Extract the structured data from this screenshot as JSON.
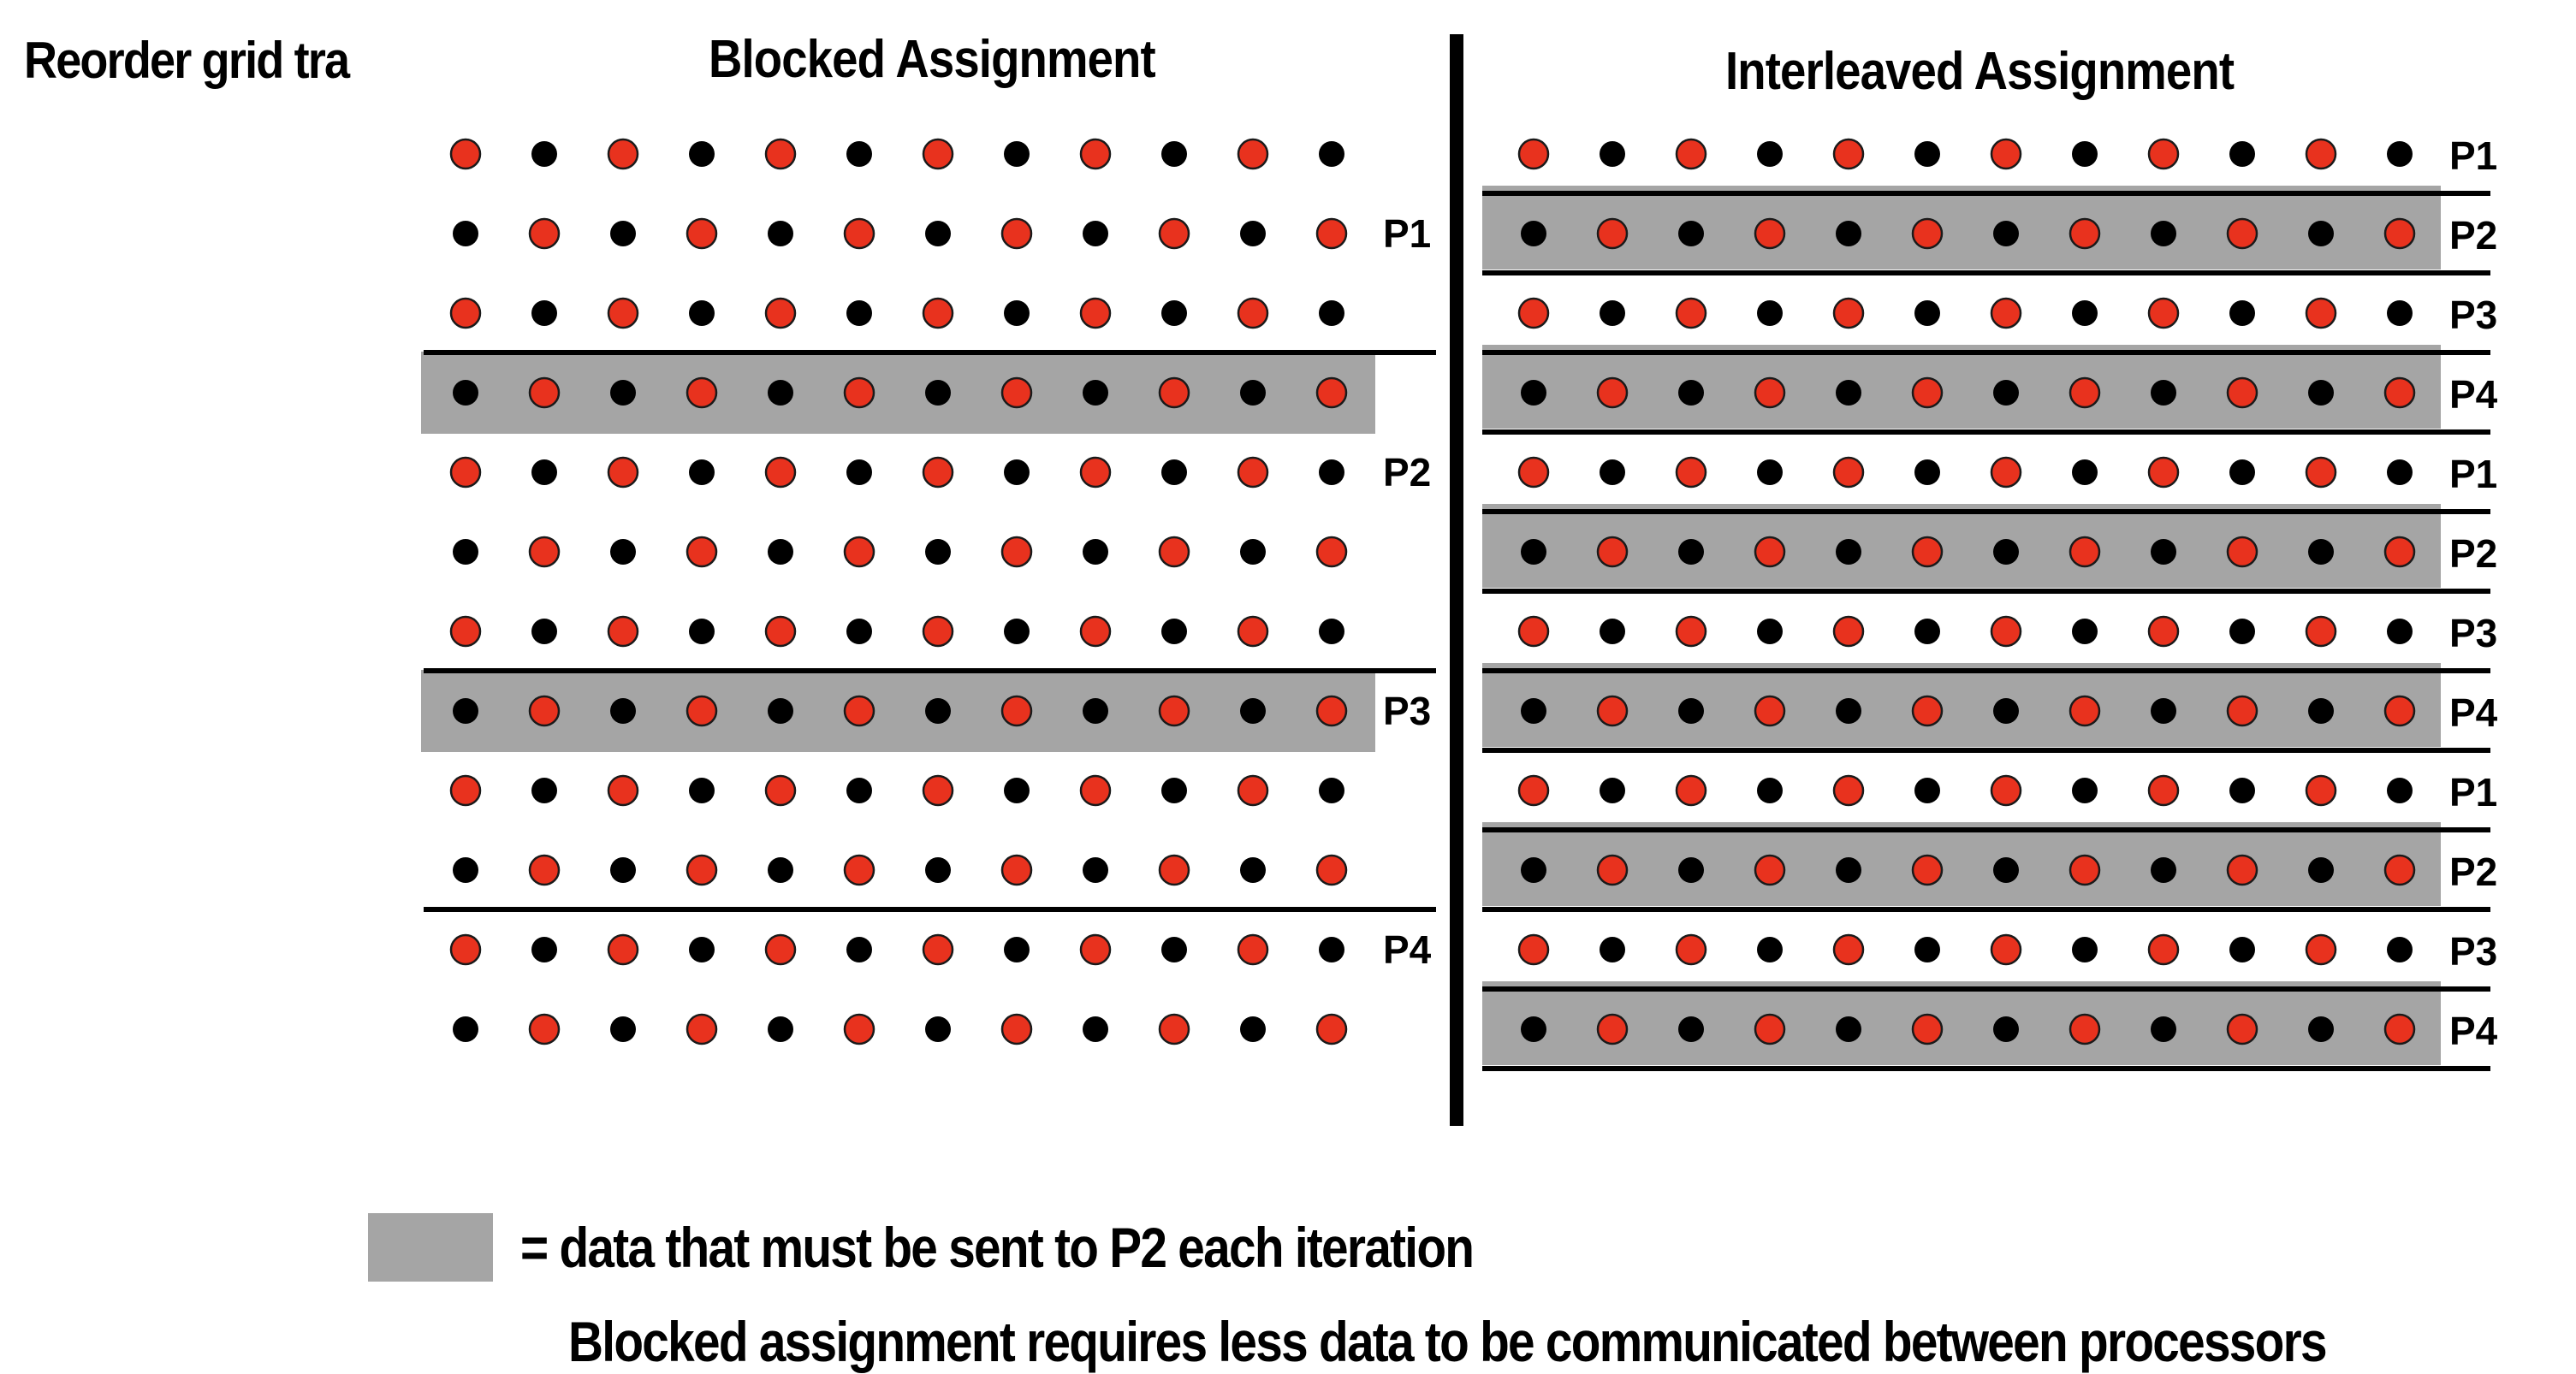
{
  "page_title": "Reorder grid tra",
  "blocked": {
    "title": "Blocked Assignment",
    "labels": [
      "P1",
      "P2",
      "P3",
      "P4"
    ],
    "shaded_rows": [
      3,
      7
    ]
  },
  "interleaved": {
    "title": "Interleaved Assignment",
    "row_labels": [
      "P1",
      "P2",
      "P3",
      "P4",
      "P1",
      "P2",
      "P3",
      "P4",
      "P1",
      "P2",
      "P3",
      "P4"
    ],
    "shaded_rows": [
      1,
      3,
      5,
      7,
      9,
      11
    ]
  },
  "grid": {
    "rows": 12,
    "cols": 12
  },
  "colors": {
    "red": "#e8321e",
    "black": "#000000",
    "shade": "#a5a5a5"
  },
  "legend": {
    "text": "= data that must be sent to P2 each iteration"
  },
  "conclusion": "Blocked assignment requires less data to be communicated between processors"
}
